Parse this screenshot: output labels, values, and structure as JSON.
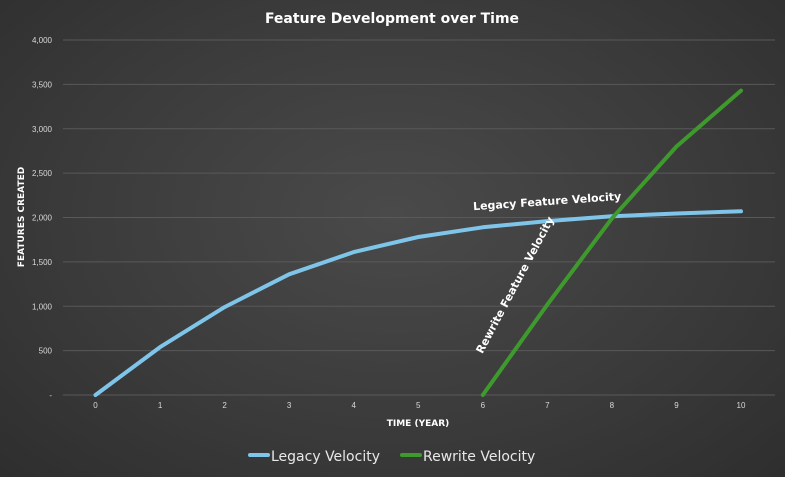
{
  "chart_data": {
    "type": "line",
    "title": "Feature Development over Time",
    "xlabel": "TIME (YEAR)",
    "ylabel": "FEATURES CREATED",
    "x": [
      0,
      1,
      2,
      3,
      4,
      5,
      6,
      7,
      8,
      9,
      10
    ],
    "ylim": [
      0,
      4000
    ],
    "y_ticks": [
      0,
      500,
      1000,
      1500,
      2000,
      2500,
      3000,
      3500,
      4000
    ],
    "y_tick_labels": [
      "-",
      "500",
      "1,000",
      "1,500",
      "2,000",
      "2,500",
      "3,000",
      "3,500",
      "4,000"
    ],
    "grid": true,
    "legend_position": "bottom",
    "series": [
      {
        "name": "Legacy Velocity",
        "color": "#7fc5ea",
        "points": [
          [
            0,
            0
          ],
          [
            1,
            540
          ],
          [
            2,
            990
          ],
          [
            3,
            1360
          ],
          [
            4,
            1610
          ],
          [
            5,
            1780
          ],
          [
            6,
            1890
          ],
          [
            7,
            1960
          ],
          [
            8,
            2015
          ],
          [
            9,
            2045
          ],
          [
            10,
            2070
          ]
        ]
      },
      {
        "name": "Rewrite Velocity",
        "color": "#3f9a2e",
        "points": [
          [
            6,
            0
          ],
          [
            7,
            1020
          ],
          [
            8,
            1990
          ],
          [
            9,
            2800
          ],
          [
            10,
            3430
          ]
        ]
      }
    ],
    "annotations": [
      {
        "text": "Legacy Feature Velocity",
        "x": 7.0,
        "y": 2140,
        "rotation": -4
      },
      {
        "text": "Rewrite Feature Velocity",
        "x": 6.55,
        "y": 1220,
        "rotation": -62
      }
    ]
  }
}
